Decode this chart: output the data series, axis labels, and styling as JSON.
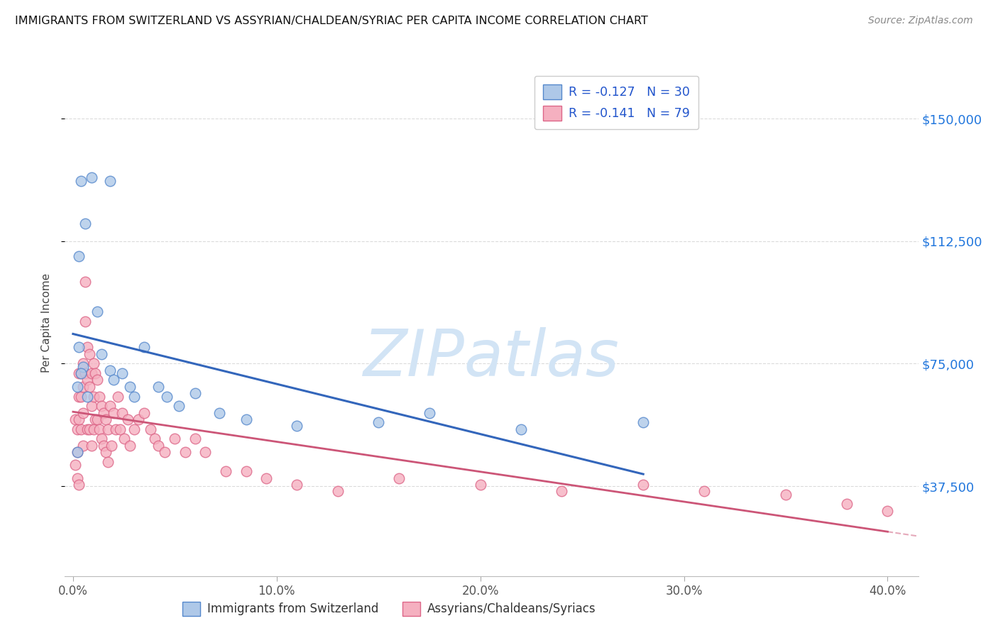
{
  "title": "IMMIGRANTS FROM SWITZERLAND VS ASSYRIAN/CHALDEAN/SYRIAC PER CAPITA INCOME CORRELATION CHART",
  "source": "Source: ZipAtlas.com",
  "ylabel": "Per Capita Income",
  "ytick_labels": [
    "$37,500",
    "$75,000",
    "$112,500",
    "$150,000"
  ],
  "ytick_vals": [
    37500,
    75000,
    112500,
    150000
  ],
  "ylim": [
    10000,
    165000
  ],
  "xlim": [
    -0.004,
    0.415
  ],
  "xtick_vals": [
    0.0,
    0.1,
    0.2,
    0.3,
    0.4
  ],
  "xtick_labels": [
    "0.0%",
    "10.0%",
    "20.0%",
    "30.0%",
    "40.0%"
  ],
  "blue_R": -0.127,
  "blue_N": 30,
  "pink_R": -0.141,
  "pink_N": 79,
  "blue_face_color": "#aec8e8",
  "blue_edge_color": "#5588cc",
  "pink_face_color": "#f5b0c0",
  "pink_edge_color": "#dd6688",
  "blue_line_color": "#3366bb",
  "pink_line_color": "#cc5577",
  "watermark_color": "#d2e4f5",
  "watermark_text": "ZIPatlas",
  "legend_label_blue": "Immigrants from Switzerland",
  "legend_label_pink": "Assyrians/Chaldeans/Syriacs",
  "blue_x": [
    0.004,
    0.009,
    0.018,
    0.006,
    0.003,
    0.003,
    0.005,
    0.004,
    0.002,
    0.007,
    0.012,
    0.014,
    0.018,
    0.02,
    0.024,
    0.028,
    0.03,
    0.035,
    0.042,
    0.046,
    0.052,
    0.06,
    0.072,
    0.085,
    0.11,
    0.15,
    0.175,
    0.22,
    0.002,
    0.28
  ],
  "blue_y": [
    131000,
    132000,
    131000,
    118000,
    108000,
    80000,
    74000,
    72000,
    68000,
    65000,
    91000,
    78000,
    73000,
    70000,
    72000,
    68000,
    65000,
    80000,
    68000,
    65000,
    62000,
    66000,
    60000,
    58000,
    56000,
    57000,
    60000,
    55000,
    48000,
    57000
  ],
  "pink_x": [
    0.001,
    0.001,
    0.002,
    0.002,
    0.002,
    0.003,
    0.003,
    0.003,
    0.003,
    0.004,
    0.004,
    0.004,
    0.005,
    0.005,
    0.005,
    0.005,
    0.006,
    0.006,
    0.006,
    0.007,
    0.007,
    0.007,
    0.008,
    0.008,
    0.008,
    0.009,
    0.009,
    0.009,
    0.01,
    0.01,
    0.01,
    0.011,
    0.011,
    0.012,
    0.012,
    0.013,
    0.013,
    0.014,
    0.014,
    0.015,
    0.015,
    0.016,
    0.016,
    0.017,
    0.017,
    0.018,
    0.019,
    0.02,
    0.021,
    0.022,
    0.023,
    0.024,
    0.025,
    0.027,
    0.028,
    0.03,
    0.032,
    0.035,
    0.038,
    0.04,
    0.042,
    0.045,
    0.05,
    0.055,
    0.06,
    0.065,
    0.075,
    0.085,
    0.095,
    0.11,
    0.13,
    0.16,
    0.2,
    0.24,
    0.28,
    0.31,
    0.35,
    0.38,
    0.4
  ],
  "pink_y": [
    58000,
    44000,
    55000,
    48000,
    40000,
    72000,
    65000,
    58000,
    38000,
    72000,
    65000,
    55000,
    75000,
    68000,
    60000,
    50000,
    100000,
    88000,
    72000,
    80000,
    70000,
    55000,
    78000,
    68000,
    55000,
    72000,
    62000,
    50000,
    75000,
    65000,
    55000,
    72000,
    58000,
    70000,
    58000,
    65000,
    55000,
    62000,
    52000,
    60000,
    50000,
    58000,
    48000,
    55000,
    45000,
    62000,
    50000,
    60000,
    55000,
    65000,
    55000,
    60000,
    52000,
    58000,
    50000,
    55000,
    58000,
    60000,
    55000,
    52000,
    50000,
    48000,
    52000,
    48000,
    52000,
    48000,
    42000,
    42000,
    40000,
    38000,
    36000,
    40000,
    38000,
    36000,
    38000,
    36000,
    35000,
    32000,
    30000
  ]
}
